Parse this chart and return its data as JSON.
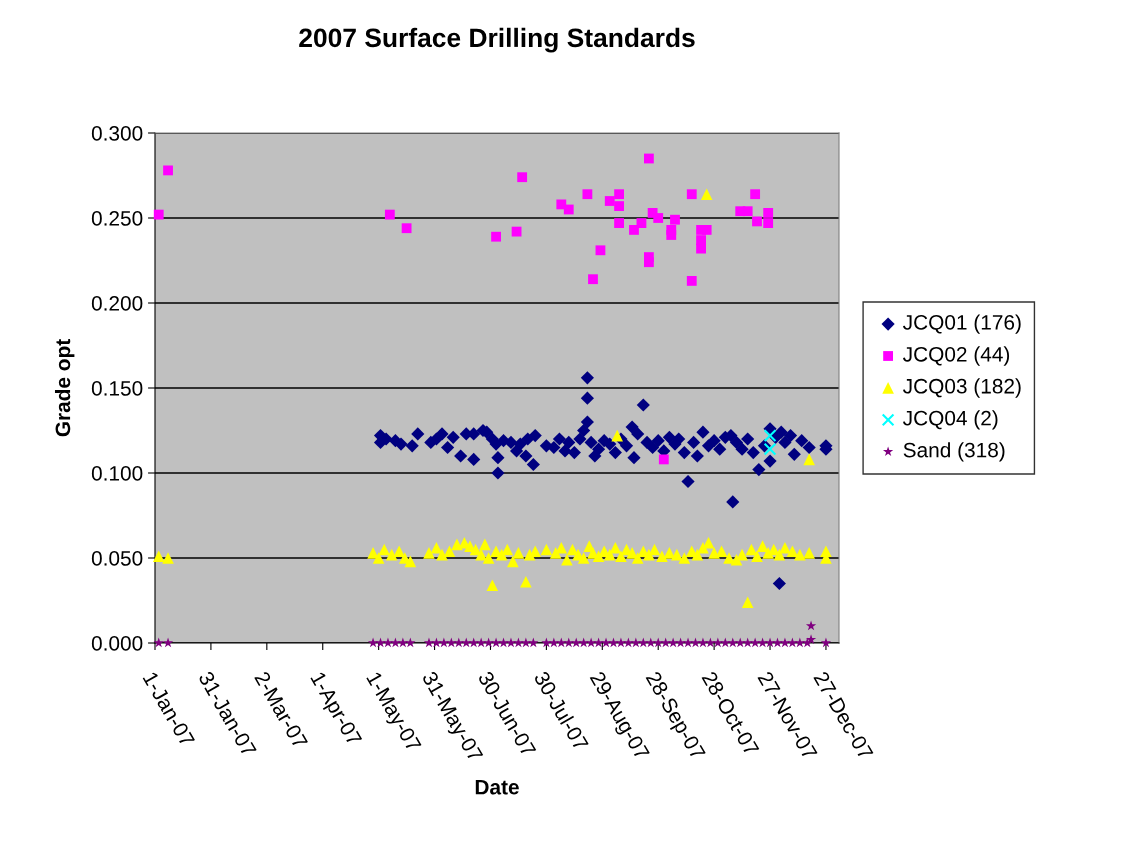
{
  "chart_data": {
    "type": "scatter",
    "title": "2007 Surface Drilling Standards",
    "xlabel": "Date",
    "ylabel": "Grade opt",
    "xlim": [
      "2007-01-01",
      "2008-01-03"
    ],
    "xticks": [
      {
        "value": "2007-01-01",
        "label": "1-Jan-07"
      },
      {
        "value": "2007-01-31",
        "label": "31-Jan-07"
      },
      {
        "value": "2007-03-02",
        "label": "2-Mar-07"
      },
      {
        "value": "2007-04-01",
        "label": "1-Apr-07"
      },
      {
        "value": "2007-05-01",
        "label": "1-May-07"
      },
      {
        "value": "2007-05-31",
        "label": "31-May-07"
      },
      {
        "value": "2007-06-30",
        "label": "30-Jun-07"
      },
      {
        "value": "2007-07-30",
        "label": "30-Jul-07"
      },
      {
        "value": "2007-08-29",
        "label": "29-Aug-07"
      },
      {
        "value": "2007-09-28",
        "label": "28-Sep-07"
      },
      {
        "value": "2007-10-28",
        "label": "28-Oct-07"
      },
      {
        "value": "2007-11-27",
        "label": "27-Nov-07"
      },
      {
        "value": "2007-12-27",
        "label": "27-Dec-07"
      }
    ],
    "ylim": [
      0,
      0.3
    ],
    "yticks": [
      {
        "value": 0,
        "label": "0.000"
      },
      {
        "value": 0.05,
        "label": "0.050"
      },
      {
        "value": 0.1,
        "label": "0.100"
      },
      {
        "value": 0.15,
        "label": "0.150"
      },
      {
        "value": 0.2,
        "label": "0.200"
      },
      {
        "value": 0.25,
        "label": "0.250"
      },
      {
        "value": 0.3,
        "label": "0.300"
      }
    ],
    "grid": "y",
    "legend": "right",
    "series": [
      {
        "name": "JCQ01 (176)",
        "color": "#000080",
        "marker": "diamond",
        "x": [
          "2007-05-02",
          "2007-05-02",
          "2007-05-05",
          "2007-05-10",
          "2007-05-13",
          "2007-05-19",
          "2007-05-22",
          "2007-05-29",
          "2007-06-01",
          "2007-06-04",
          "2007-06-07",
          "2007-06-10",
          "2007-06-14",
          "2007-06-17",
          "2007-06-21",
          "2007-06-21",
          "2007-06-26",
          "2007-06-28",
          "2007-07-01",
          "2007-07-03",
          "2007-07-04",
          "2007-07-04",
          "2007-07-07",
          "2007-07-11",
          "2007-07-14",
          "2007-07-16",
          "2007-07-19",
          "2007-07-20",
          "2007-07-23",
          "2007-07-24",
          "2007-07-30",
          "2007-08-03",
          "2007-08-06",
          "2007-08-09",
          "2007-08-11",
          "2007-08-14",
          "2007-08-17",
          "2007-08-19",
          "2007-08-21",
          "2007-08-21",
          "2007-08-21",
          "2007-08-23",
          "2007-08-25",
          "2007-08-27",
          "2007-08-30",
          "2007-09-02",
          "2007-09-05",
          "2007-09-08",
          "2007-09-11",
          "2007-09-14",
          "2007-09-15",
          "2007-09-17",
          "2007-09-20",
          "2007-09-22",
          "2007-09-25",
          "2007-09-28",
          "2007-10-01",
          "2007-10-04",
          "2007-10-07",
          "2007-10-09",
          "2007-10-12",
          "2007-10-14",
          "2007-10-17",
          "2007-10-19",
          "2007-10-22",
          "2007-10-25",
          "2007-10-28",
          "2007-10-31",
          "2007-11-03",
          "2007-11-07",
          "2007-11-06",
          "2007-11-09",
          "2007-11-12",
          "2007-11-15",
          "2007-11-18",
          "2007-11-21",
          "2007-11-24",
          "2007-11-27",
          "2007-11-27",
          "2007-11-30",
          "2007-12-02",
          "2007-12-03",
          "2007-12-05",
          "2007-12-08",
          "2007-12-10",
          "2007-12-14",
          "2007-12-18",
          "2007-12-27",
          "2007-12-27"
        ],
        "values": [
          0.122,
          0.118,
          0.12,
          0.119,
          0.117,
          0.116,
          0.123,
          0.118,
          0.12,
          0.123,
          0.115,
          0.121,
          0.11,
          0.123,
          0.108,
          0.123,
          0.125,
          0.124,
          0.12,
          0.117,
          0.1,
          0.109,
          0.119,
          0.118,
          0.113,
          0.117,
          0.11,
          0.12,
          0.105,
          0.122,
          0.116,
          0.115,
          0.12,
          0.113,
          0.118,
          0.112,
          0.12,
          0.125,
          0.156,
          0.144,
          0.13,
          0.118,
          0.11,
          0.114,
          0.119,
          0.117,
          0.112,
          0.12,
          0.116,
          0.127,
          0.109,
          0.123,
          0.14,
          0.118,
          0.115,
          0.119,
          0.113,
          0.121,
          0.117,
          0.12,
          0.112,
          0.095,
          0.118,
          0.11,
          0.124,
          0.116,
          0.119,
          0.114,
          0.121,
          0.083,
          0.122,
          0.118,
          0.114,
          0.12,
          0.112,
          0.102,
          0.116,
          0.126,
          0.107,
          0.121,
          0.035,
          0.124,
          0.118,
          0.122,
          0.111,
          0.119,
          0.115,
          0.114,
          0.116
        ]
      },
      {
        "name": "JCQ02 (44)",
        "color": "#ff00ff",
        "marker": "square",
        "x": [
          "2007-01-03",
          "2007-01-08",
          "2007-05-07",
          "2007-05-16",
          "2007-07-03",
          "2007-07-14",
          "2007-07-17",
          "2007-08-07",
          "2007-08-11",
          "2007-08-21",
          "2007-08-24",
          "2007-08-28",
          "2007-09-02",
          "2007-09-07",
          "2007-09-07",
          "2007-09-07",
          "2007-09-15",
          "2007-09-19",
          "2007-09-23",
          "2007-09-23",
          "2007-09-23",
          "2007-09-25",
          "2007-09-28",
          "2007-10-01",
          "2007-10-05",
          "2007-10-05",
          "2007-10-07",
          "2007-10-16",
          "2007-10-16",
          "2007-10-21",
          "2007-10-21",
          "2007-10-21",
          "2007-10-24",
          "2007-11-11",
          "2007-11-15",
          "2007-11-19",
          "2007-11-20",
          "2007-11-26",
          "2007-11-26"
        ],
        "values": [
          0.252,
          0.278,
          0.252,
          0.244,
          0.239,
          0.242,
          0.274,
          0.258,
          0.255,
          0.264,
          0.214,
          0.231,
          0.26,
          0.264,
          0.257,
          0.247,
          0.243,
          0.247,
          0.285,
          0.227,
          0.224,
          0.253,
          0.25,
          0.108,
          0.24,
          0.243,
          0.249,
          0.264,
          0.213,
          0.243,
          0.237,
          0.232,
          0.243,
          0.254,
          0.254,
          0.264,
          0.248,
          0.253,
          0.247
        ]
      },
      {
        "name": "JCQ03 (182)",
        "color": "#ffff00",
        "marker": "triangle",
        "x": [
          "2007-01-03",
          "2007-01-08",
          "2007-04-28",
          "2007-05-01",
          "2007-05-04",
          "2007-05-08",
          "2007-05-12",
          "2007-05-15",
          "2007-05-18",
          "2007-05-28",
          "2007-06-01",
          "2007-06-04",
          "2007-06-08",
          "2007-06-12",
          "2007-06-16",
          "2007-06-19",
          "2007-06-22",
          "2007-06-25",
          "2007-06-27",
          "2007-06-29",
          "2007-07-01",
          "2007-07-03",
          "2007-07-06",
          "2007-07-09",
          "2007-07-12",
          "2007-07-15",
          "2007-07-19",
          "2007-07-21",
          "2007-07-24",
          "2007-07-30",
          "2007-08-04",
          "2007-08-07",
          "2007-08-10",
          "2007-08-13",
          "2007-08-16",
          "2007-08-19",
          "2007-08-22",
          "2007-08-24",
          "2007-08-27",
          "2007-08-30",
          "2007-09-02",
          "2007-09-06",
          "2007-09-05",
          "2007-09-08",
          "2007-09-11",
          "2007-09-14",
          "2007-09-17",
          "2007-09-20",
          "2007-09-23",
          "2007-09-26",
          "2007-09-30",
          "2007-10-04",
          "2007-10-08",
          "2007-10-12",
          "2007-10-16",
          "2007-10-19",
          "2007-10-22",
          "2007-10-24",
          "2007-10-25",
          "2007-10-28",
          "2007-11-01",
          "2007-11-05",
          "2007-11-09",
          "2007-11-12",
          "2007-11-15",
          "2007-11-17",
          "2007-11-20",
          "2007-11-23",
          "2007-11-26",
          "2007-11-29",
          "2007-12-02",
          "2007-12-05",
          "2007-12-09",
          "2007-12-13",
          "2007-12-18",
          "2007-12-18",
          "2007-12-27",
          "2007-12-27"
        ],
        "values": [
          0.051,
          0.05,
          0.053,
          0.05,
          0.055,
          0.052,
          0.054,
          0.05,
          0.048,
          0.053,
          0.056,
          0.052,
          0.054,
          0.058,
          0.059,
          0.057,
          0.055,
          0.052,
          0.058,
          0.05,
          0.034,
          0.054,
          0.052,
          0.055,
          0.048,
          0.053,
          0.036,
          0.052,
          0.054,
          0.055,
          0.053,
          0.056,
          0.049,
          0.055,
          0.052,
          0.05,
          0.057,
          0.053,
          0.051,
          0.054,
          0.052,
          0.122,
          0.056,
          0.051,
          0.055,
          0.053,
          0.05,
          0.054,
          0.052,
          0.055,
          0.051,
          0.053,
          0.052,
          0.05,
          0.054,
          0.052,
          0.056,
          0.264,
          0.059,
          0.053,
          0.054,
          0.05,
          0.049,
          0.052,
          0.024,
          0.055,
          0.051,
          0.057,
          0.053,
          0.055,
          0.052,
          0.056,
          0.054,
          0.052,
          0.108,
          0.053,
          0.054,
          0.05
        ]
      },
      {
        "name": "JCQ04 (2)",
        "color": "#00ffff",
        "marker": "cross",
        "x": [
          "2007-11-27",
          "2007-11-27"
        ],
        "values": [
          0.122,
          0.114
        ]
      },
      {
        "name": "Sand (318)",
        "color": "#800080",
        "marker": "star",
        "x": [
          "2007-01-03",
          "2007-01-08",
          "2007-04-28",
          "2007-05-02",
          "2007-05-06",
          "2007-05-10",
          "2007-05-14",
          "2007-05-18",
          "2007-05-28",
          "2007-06-01",
          "2007-06-05",
          "2007-06-09",
          "2007-06-13",
          "2007-06-17",
          "2007-06-21",
          "2007-06-25",
          "2007-06-29",
          "2007-07-03",
          "2007-07-07",
          "2007-07-11",
          "2007-07-15",
          "2007-07-19",
          "2007-07-23",
          "2007-07-30",
          "2007-08-03",
          "2007-08-07",
          "2007-08-11",
          "2007-08-15",
          "2007-08-19",
          "2007-08-23",
          "2007-08-27",
          "2007-08-31",
          "2007-09-04",
          "2007-09-08",
          "2007-09-12",
          "2007-09-16",
          "2007-09-20",
          "2007-09-24",
          "2007-09-28",
          "2007-10-02",
          "2007-10-06",
          "2007-10-10",
          "2007-10-14",
          "2007-10-18",
          "2007-10-22",
          "2007-10-26",
          "2007-10-30",
          "2007-11-03",
          "2007-11-07",
          "2007-11-11",
          "2007-11-15",
          "2007-11-19",
          "2007-11-23",
          "2007-11-27",
          "2007-12-01",
          "2007-12-05",
          "2007-12-09",
          "2007-12-13",
          "2007-12-17",
          "2007-12-19",
          "2007-12-19",
          "2007-12-27"
        ],
        "values": [
          0,
          0,
          0,
          0,
          0,
          0,
          0,
          0,
          0,
          0,
          0,
          0,
          0,
          0,
          0,
          0,
          0,
          0,
          0,
          0,
          0,
          0,
          0,
          0,
          0,
          0,
          0,
          0,
          0,
          0,
          0,
          0,
          0,
          0,
          0,
          0,
          0,
          0,
          0,
          0,
          0,
          0,
          0,
          0,
          0,
          0,
          0,
          0,
          0,
          0,
          0,
          0,
          0,
          0,
          0,
          0,
          0,
          0,
          0,
          0.01,
          0.002,
          0
        ]
      }
    ]
  }
}
